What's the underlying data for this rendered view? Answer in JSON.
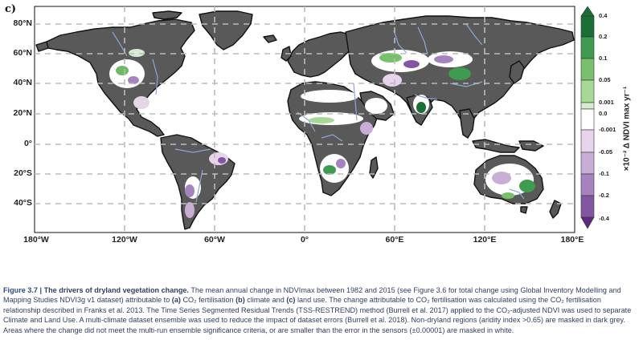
{
  "panel_label": "c)",
  "map": {
    "lat_labels": [
      "80°N",
      "60°N",
      "40°N",
      "20°N",
      "0°",
      "20°S",
      "40°S"
    ],
    "lon_labels": [
      "180°W",
      "120°W",
      "60°W",
      "0°",
      "60°E",
      "120°E",
      "180°E"
    ],
    "colors": {
      "ocean": "#ffffff",
      "land_masked": "#595959",
      "coast": "#111111",
      "rivers": "#8aa7d6",
      "grid": "#bbbbbb"
    }
  },
  "colorbar": {
    "ticks": [
      "0.4",
      "0.2",
      "0.1",
      "0.05",
      "0.001",
      "0.0",
      "-0.001",
      "-0.05",
      "-0.1",
      "-0.2",
      "-0.4"
    ],
    "unit_label": "×10⁻² Δ NDVI max yr⁻¹",
    "colors": [
      "#1b6e36",
      "#3f9b4f",
      "#78c06b",
      "#a8d896",
      "#d6ecd0",
      "#ffffff",
      "#e6d5ea",
      "#c8aed6",
      "#a683bf",
      "#8356a3",
      "#5e2b7f"
    ]
  },
  "caption": {
    "fig_number": "Figure 3.7 |",
    "fig_title": "The drivers of dryland vegetation change.",
    "seg1": " The mean annual change in NDVImax between 1982 and 2015 (see Figure 3.6 for total change using Global Inventory Modelling and Mapping Studies NDVI3g v1 dataset) attributable to ",
    "a_label": "(a)",
    "a_text": " CO₂ fertilisation ",
    "b_label": "(b)",
    "b_text": " climate and ",
    "c_label": "(c)",
    "seg2": " land use. The change attributable to CO₂ fertilisation was calculated using the CO₂ fertilisation relationship described in Franks et al. 2013. The Time Series Segmented Residual Trends (TSS-RESTREND) method (Burrell et al. 2017) applied to the CO₂-adjusted NDVI was used to separate Climate and Land Use. A multi-climate dataset ensemble was used to reduce the impact of dataset errors (Burrell et al. 2018). Non-dryland regions (aridity index >0.65) are masked in dark grey. Areas where the change did not meet the multi-run ensemble significance criteria, or are smaller than the error in the sensors (±0.00001) are masked in white."
  }
}
